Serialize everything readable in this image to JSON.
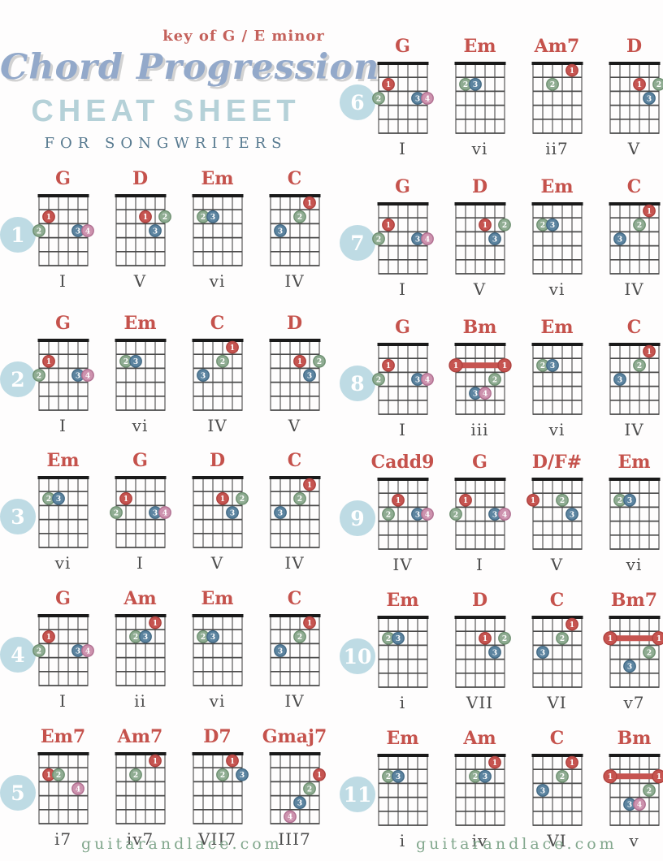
{
  "header": {
    "key_label": "key of G / E minor",
    "title_script": "Chord Progression",
    "title_main": "CHEAT SHEET",
    "subtitle": "FOR SONGWRITERS"
  },
  "footer": {
    "left": "guitarandlace.com",
    "right": "guitarandlace.com"
  },
  "colors": {
    "chord_name": "#c5524c",
    "numeral": "#4c4c4c",
    "grid_line": "#4a4a4a",
    "nut": "#1a1a1a",
    "row_badge": "#bedbe4",
    "barre": "#c65450",
    "fingers": {
      "1": {
        "fill": "#c65450",
        "border": "#ae413e"
      },
      "2": {
        "fill": "#8fac92",
        "border": "#6e9071"
      },
      "3": {
        "fill": "#5c84a0",
        "border": "#436a85"
      },
      "4": {
        "fill": "#cd92ae",
        "border": "#b06f90"
      }
    }
  },
  "diagram_legend": "strings numbered 1-6 from low E (left) to high e (right); frets 1-5 from nut",
  "chord_shapes": {
    "G": {
      "dots": [
        {
          "finger": 1,
          "string": 2,
          "fret": 2
        },
        {
          "finger": 2,
          "string": 1,
          "fret": 3
        },
        {
          "finger": 3,
          "string": 5,
          "fret": 3
        },
        {
          "finger": 4,
          "string": 6,
          "fret": 3
        }
      ]
    },
    "D": {
      "dots": [
        {
          "finger": 1,
          "string": 4,
          "fret": 2
        },
        {
          "finger": 2,
          "string": 6,
          "fret": 2
        },
        {
          "finger": 3,
          "string": 5,
          "fret": 3
        }
      ]
    },
    "Em": {
      "dots": [
        {
          "finger": 2,
          "string": 2,
          "fret": 2
        },
        {
          "finger": 3,
          "string": 3,
          "fret": 2
        }
      ]
    },
    "C": {
      "dots": [
        {
          "finger": 1,
          "string": 5,
          "fret": 1
        },
        {
          "finger": 2,
          "string": 4,
          "fret": 2
        },
        {
          "finger": 3,
          "string": 2,
          "fret": 3
        }
      ]
    },
    "Am": {
      "dots": [
        {
          "finger": 1,
          "string": 5,
          "fret": 1
        },
        {
          "finger": 2,
          "string": 3,
          "fret": 2
        },
        {
          "finger": 3,
          "string": 4,
          "fret": 2
        }
      ]
    },
    "Am7": {
      "dots": [
        {
          "finger": 1,
          "string": 5,
          "fret": 1
        },
        {
          "finger": 2,
          "string": 3,
          "fret": 2
        }
      ]
    },
    "Em7": {
      "dots": [
        {
          "finger": 1,
          "string": 2,
          "fret": 2
        },
        {
          "finger": 2,
          "string": 3,
          "fret": 2
        },
        {
          "finger": 4,
          "string": 5,
          "fret": 3
        }
      ]
    },
    "D7": {
      "dots": [
        {
          "finger": 1,
          "string": 5,
          "fret": 1
        },
        {
          "finger": 2,
          "string": 4,
          "fret": 2
        },
        {
          "finger": 3,
          "string": 6,
          "fret": 2
        }
      ]
    },
    "Gmaj7": {
      "dots": [
        {
          "finger": 1,
          "string": 6,
          "fret": 2
        },
        {
          "finger": 2,
          "string": 5,
          "fret": 3
        },
        {
          "finger": 3,
          "string": 4,
          "fret": 4
        },
        {
          "finger": 4,
          "string": 3,
          "fret": 5
        }
      ]
    },
    "Bm": {
      "barre": {
        "finger": 1,
        "fret": 2,
        "from_string": 1,
        "to_string": 6
      },
      "dots": [
        {
          "finger": 2,
          "string": 5,
          "fret": 3
        },
        {
          "finger": 3,
          "string": 3,
          "fret": 4
        },
        {
          "finger": 4,
          "string": 4,
          "fret": 4
        }
      ]
    },
    "Bm7": {
      "barre": {
        "finger": 1,
        "fret": 2,
        "from_string": 1,
        "to_string": 6
      },
      "dots": [
        {
          "finger": 2,
          "string": 5,
          "fret": 3
        },
        {
          "finger": 3,
          "string": 3,
          "fret": 4
        }
      ]
    },
    "Cadd9": {
      "dots": [
        {
          "finger": 1,
          "string": 3,
          "fret": 2
        },
        {
          "finger": 2,
          "string": 2,
          "fret": 3
        },
        {
          "finger": 3,
          "string": 5,
          "fret": 3
        },
        {
          "finger": 4,
          "string": 6,
          "fret": 3
        }
      ]
    },
    "D/F#": {
      "dots": [
        {
          "finger": 1,
          "string": 1,
          "fret": 2
        },
        {
          "finger": 2,
          "string": 4,
          "fret": 2
        },
        {
          "finger": 3,
          "string": 5,
          "fret": 3
        }
      ]
    }
  },
  "rows": [
    {
      "number": "1",
      "column": "left",
      "chords": [
        {
          "name": "G",
          "numeral": "I"
        },
        {
          "name": "D",
          "numeral": "V"
        },
        {
          "name": "Em",
          "numeral": "vi"
        },
        {
          "name": "C",
          "numeral": "IV"
        }
      ]
    },
    {
      "number": "2",
      "column": "left",
      "chords": [
        {
          "name": "G",
          "numeral": "I"
        },
        {
          "name": "Em",
          "numeral": "vi"
        },
        {
          "name": "C",
          "numeral": "IV"
        },
        {
          "name": "D",
          "numeral": "V"
        }
      ]
    },
    {
      "number": "3",
      "column": "left",
      "chords": [
        {
          "name": "Em",
          "numeral": "vi"
        },
        {
          "name": "G",
          "numeral": "I"
        },
        {
          "name": "D",
          "numeral": "V"
        },
        {
          "name": "C",
          "numeral": "IV"
        }
      ]
    },
    {
      "number": "4",
      "column": "left",
      "chords": [
        {
          "name": "G",
          "numeral": "I"
        },
        {
          "name": "Am",
          "numeral": "ii"
        },
        {
          "name": "Em",
          "numeral": "vi"
        },
        {
          "name": "C",
          "numeral": "IV"
        }
      ]
    },
    {
      "number": "5",
      "column": "left",
      "chords": [
        {
          "name": "Em7",
          "numeral": "i7"
        },
        {
          "name": "Am7",
          "numeral": "iv7"
        },
        {
          "name": "D7",
          "numeral": "VII7"
        },
        {
          "name": "Gmaj7",
          "numeral": "III7"
        }
      ]
    },
    {
      "number": "6",
      "column": "right",
      "chords": [
        {
          "name": "G",
          "numeral": "I"
        },
        {
          "name": "Em",
          "numeral": "vi"
        },
        {
          "name": "Am7",
          "numeral": "ii7"
        },
        {
          "name": "D",
          "numeral": "V"
        }
      ]
    },
    {
      "number": "7",
      "column": "right",
      "chords": [
        {
          "name": "G",
          "numeral": "I"
        },
        {
          "name": "D",
          "numeral": "V"
        },
        {
          "name": "Em",
          "numeral": "vi"
        },
        {
          "name": "C",
          "numeral": "IV"
        }
      ]
    },
    {
      "number": "8",
      "column": "right",
      "chords": [
        {
          "name": "G",
          "numeral": "I"
        },
        {
          "name": "Bm",
          "numeral": "iii"
        },
        {
          "name": "Em",
          "numeral": "vi"
        },
        {
          "name": "C",
          "numeral": "IV"
        }
      ]
    },
    {
      "number": "9",
      "column": "right",
      "chords": [
        {
          "name": "Cadd9",
          "numeral": "IV"
        },
        {
          "name": "G",
          "numeral": "I"
        },
        {
          "name": "D/F#",
          "numeral": "V"
        },
        {
          "name": "Em",
          "numeral": "vi"
        }
      ]
    },
    {
      "number": "10",
      "column": "right",
      "chords": [
        {
          "name": "Em",
          "numeral": "i"
        },
        {
          "name": "D",
          "numeral": "VII"
        },
        {
          "name": "C",
          "numeral": "VI"
        },
        {
          "name": "Bm7",
          "numeral": "v7"
        }
      ]
    },
    {
      "number": "11",
      "column": "right",
      "chords": [
        {
          "name": "Em",
          "numeral": "i"
        },
        {
          "name": "Am",
          "numeral": "iv"
        },
        {
          "name": "C",
          "numeral": "VI"
        },
        {
          "name": "Bm",
          "numeral": "v"
        }
      ]
    }
  ]
}
